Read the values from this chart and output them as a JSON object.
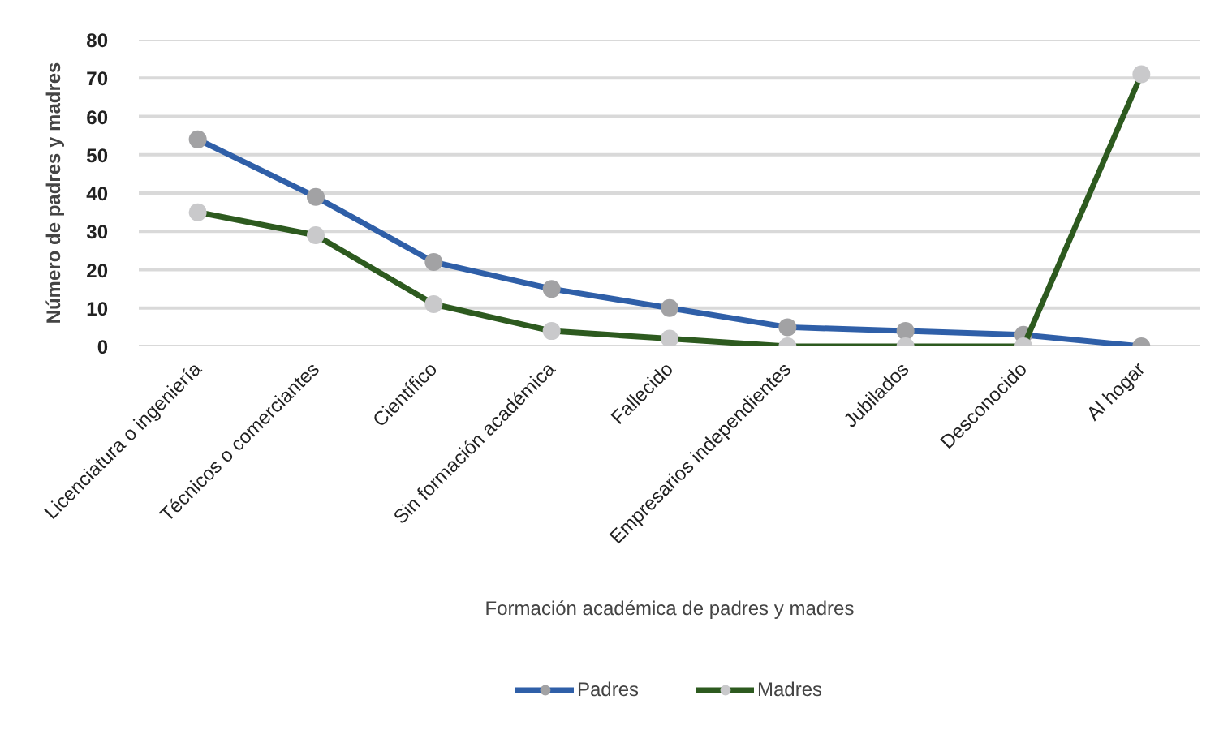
{
  "chart_data": {
    "type": "line",
    "xlabel": "Formación académica de padres y madres",
    "ylabel": "Número de padres y madres",
    "categories": [
      "Licenciatura o ingeniería",
      "Técnicos o comerciantes",
      "Científico",
      "Sin formación académica",
      "Fallecido",
      "Empresarios independientes",
      "Jubilados",
      "Desconocido",
      "Al hogar"
    ],
    "series": [
      {
        "name": "Padres",
        "color": "#2f5fa8",
        "values": [
          54,
          39,
          22,
          15,
          10,
          5,
          4,
          3,
          0
        ]
      },
      {
        "name": "Madres",
        "color": "#2d5a1f",
        "values": [
          35,
          29,
          11,
          4,
          2,
          0,
          0,
          0,
          71
        ]
      }
    ],
    "ylim": [
      0,
      80
    ],
    "yticks": [
      0,
      10,
      20,
      30,
      40,
      50,
      60,
      70,
      80
    ],
    "grid": "y",
    "legend": "bottom",
    "marker": "circle",
    "line_style": "solid"
  }
}
